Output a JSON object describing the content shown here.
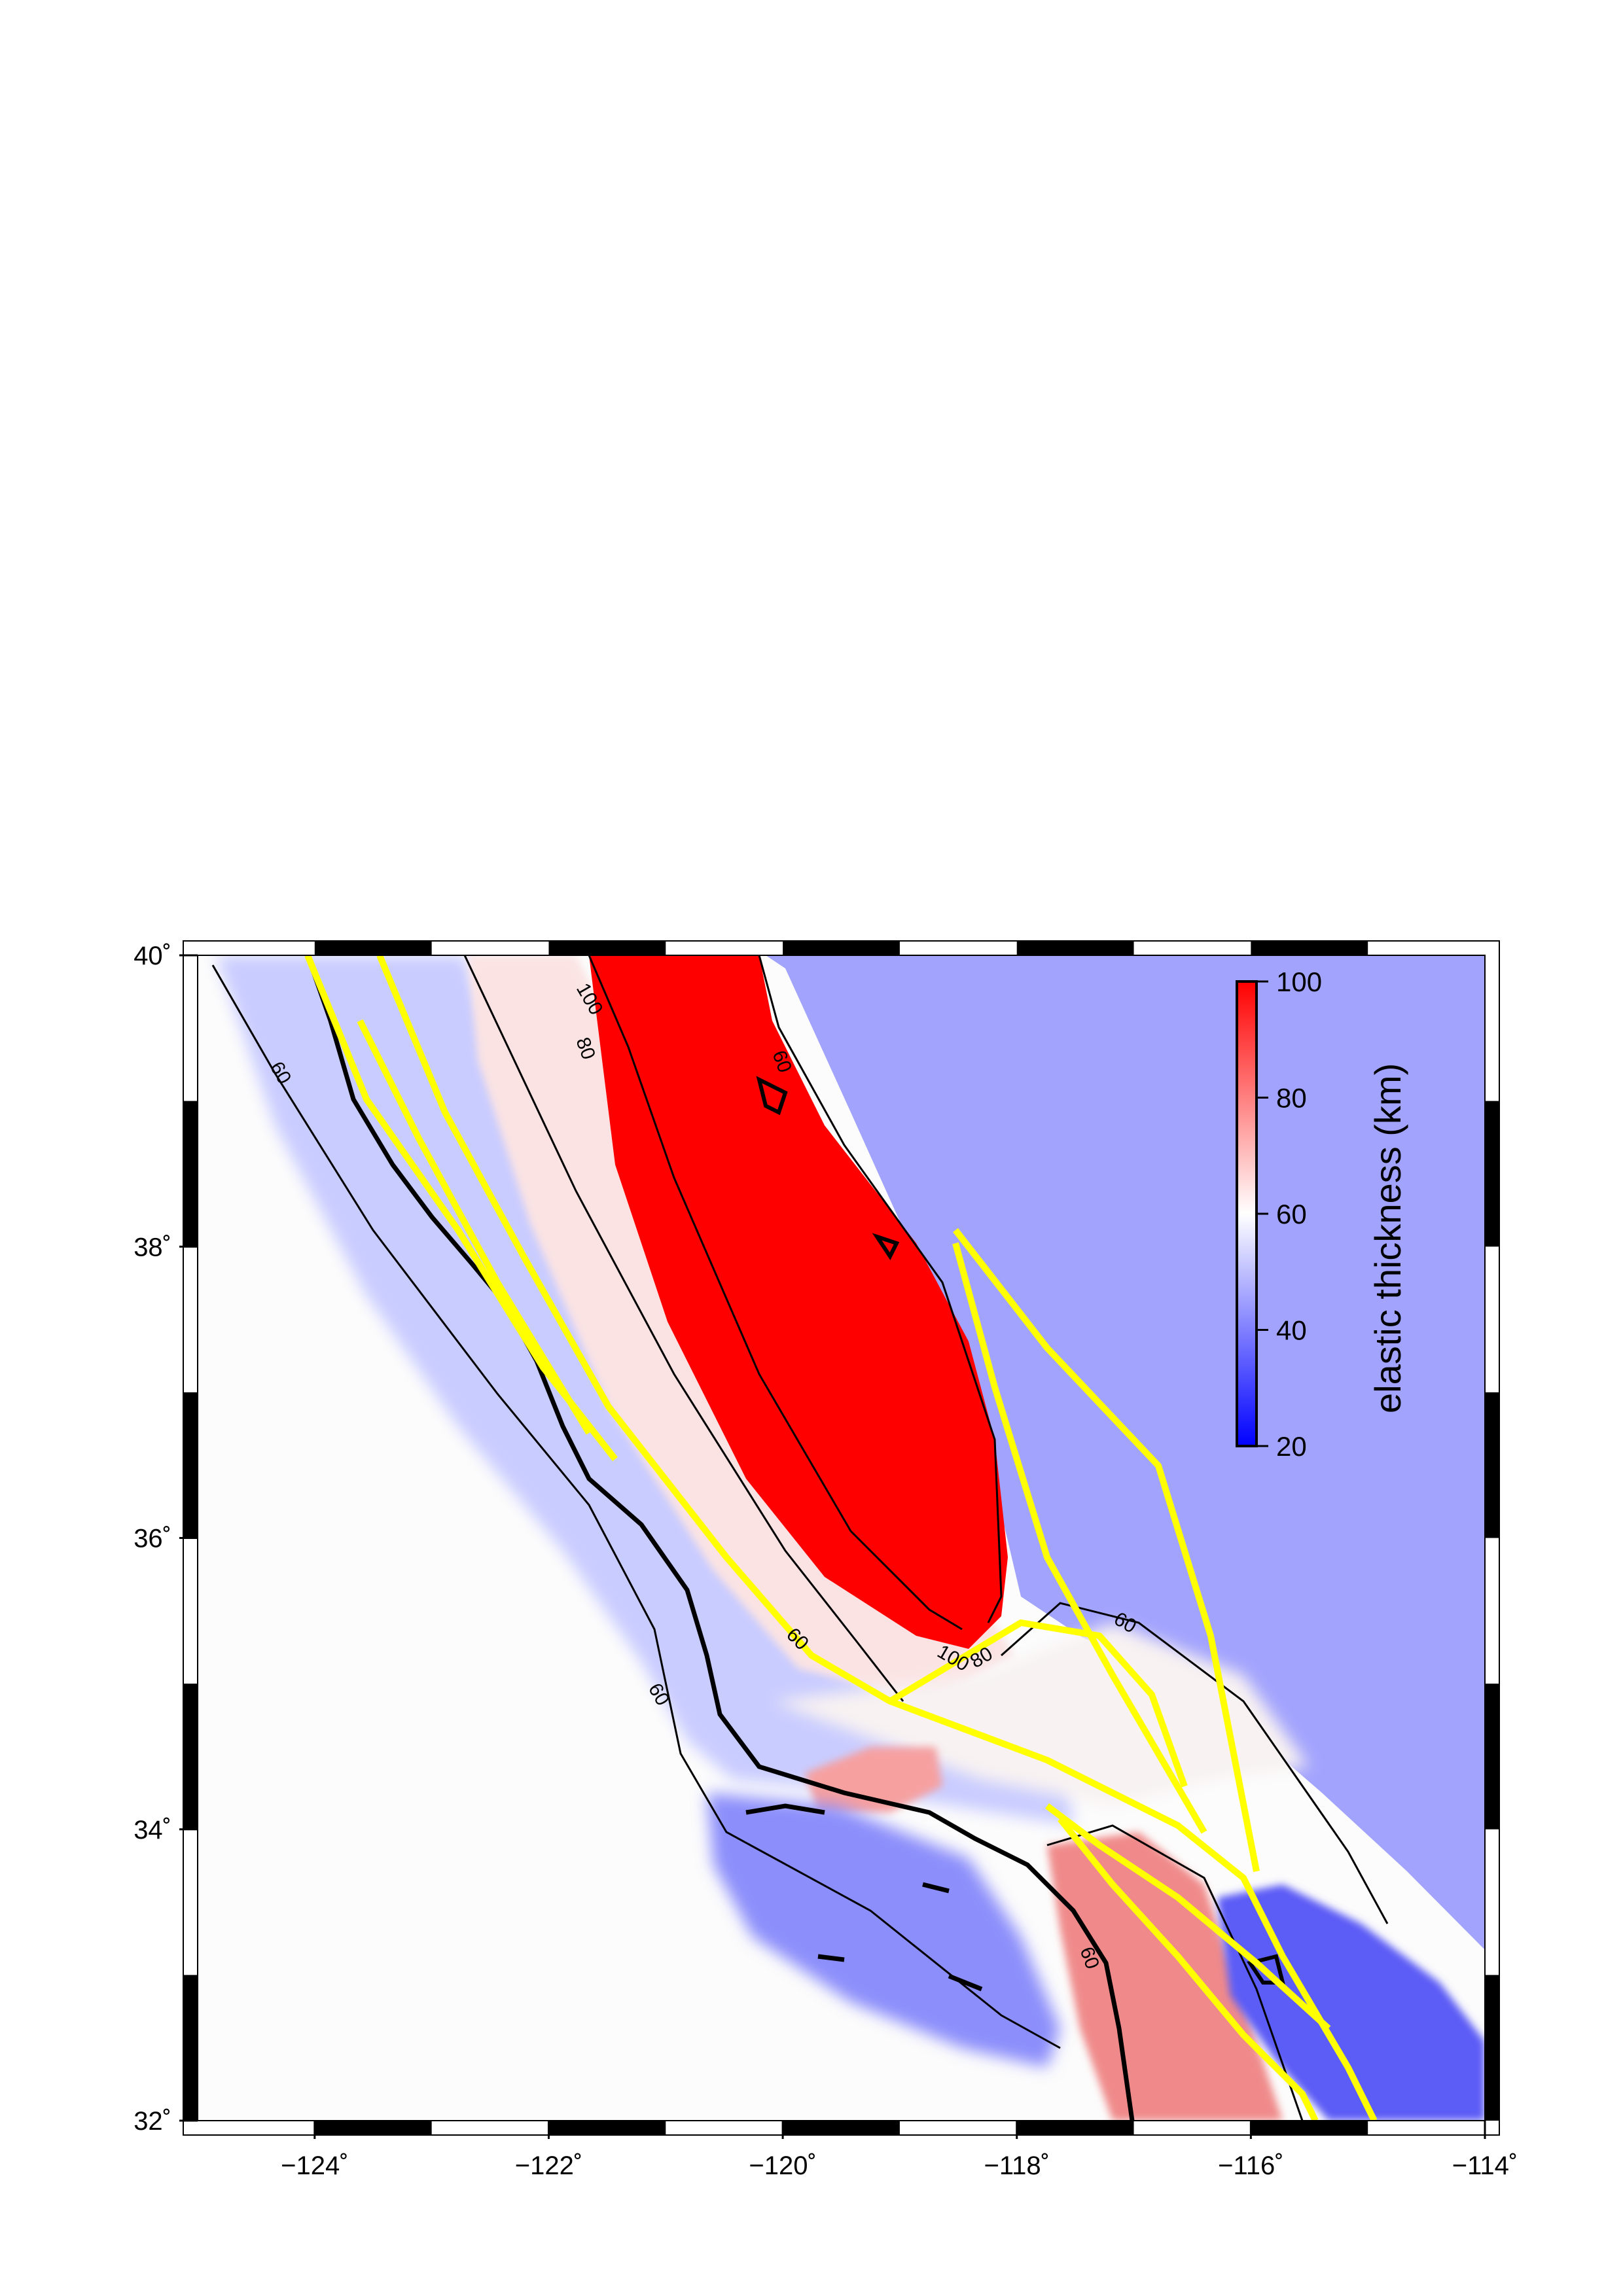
{
  "map": {
    "lon_range": [
      -125,
      -114
    ],
    "lat_range": [
      32,
      40
    ],
    "x_ticks": [
      {
        "value": -124,
        "label": "−124˚"
      },
      {
        "value": -122,
        "label": "−122˚"
      },
      {
        "value": -120,
        "label": "−120˚"
      },
      {
        "value": -118,
        "label": "−118˚"
      },
      {
        "value": -116,
        "label": "−116˚"
      },
      {
        "value": -114,
        "label": "−114˚"
      }
    ],
    "y_ticks": [
      {
        "value": 40,
        "label": "40˚"
      },
      {
        "value": 38,
        "label": "38˚"
      },
      {
        "value": 36,
        "label": "36˚"
      },
      {
        "value": 34,
        "label": "34˚"
      },
      {
        "value": 32,
        "label": "32˚"
      }
    ],
    "contour_labels": {
      "c60_a": "60",
      "c60_b": "60",
      "c60_c": "60",
      "c60_d": "60",
      "c60_e": "60",
      "c60_f": "60",
      "c80_a": "80",
      "c80_b": "80",
      "c100_a": "100",
      "c100_b": "100"
    },
    "colors": {
      "low": "#0000ff",
      "mid": "#ffffff",
      "high": "#ff0000",
      "fault": "#ffff00",
      "coast": "#000000"
    }
  },
  "colorbar": {
    "title": "elastic thickness (km)",
    "range": [
      20,
      100
    ],
    "ticks": [
      {
        "value": 100,
        "label": "100"
      },
      {
        "value": 80,
        "label": "80"
      },
      {
        "value": 60,
        "label": "60"
      },
      {
        "value": 40,
        "label": "40"
      },
      {
        "value": 20,
        "label": "20"
      }
    ]
  }
}
